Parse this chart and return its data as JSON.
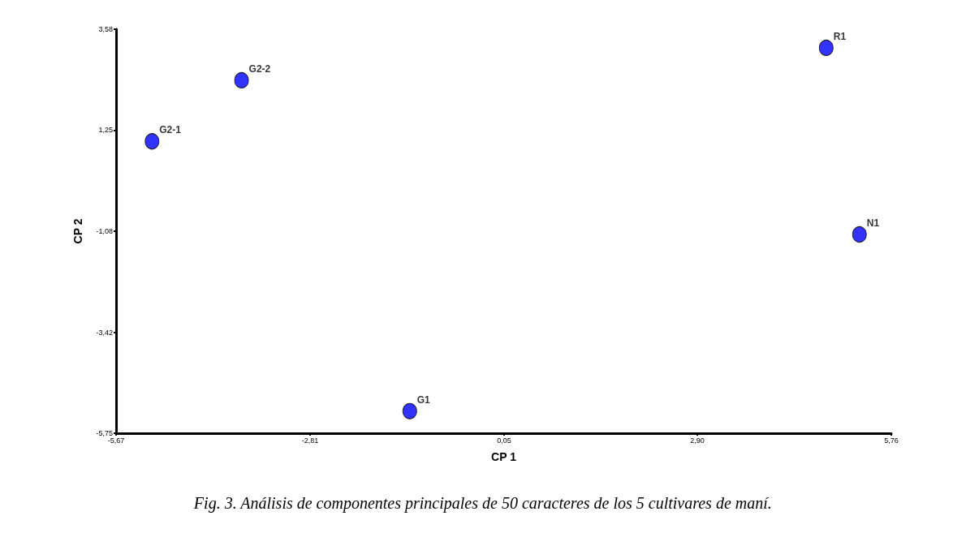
{
  "chart_data": {
    "type": "scatter",
    "xlabel": "CP 1",
    "ylabel": "CP 2",
    "x": [
      -5.14,
      -3.82,
      -1.34,
      4.8,
      5.29
    ],
    "values": [
      0.99,
      2.4,
      -5.24,
      3.15,
      -1.16
    ],
    "color": "#0000ff",
    "marker": "circle",
    "grid": false,
    "xlim": [
      -5.67,
      5.76
    ],
    "ylim": [
      -5.75,
      3.58
    ],
    "xticks": [
      {
        "value": -5.67,
        "label": "-5,67"
      },
      {
        "value": -2.81,
        "label": "-2,81"
      },
      {
        "value": 0.05,
        "label": "0,05"
      },
      {
        "value": 2.9,
        "label": "2,90"
      },
      {
        "value": 5.76,
        "label": "5,76"
      }
    ],
    "yticks": [
      {
        "value": -5.75,
        "label": "-5,75"
      },
      {
        "value": -3.42,
        "label": "-3,42"
      },
      {
        "value": -1.08,
        "label": "-1,08"
      },
      {
        "value": 1.25,
        "label": "1,25"
      },
      {
        "value": 3.58,
        "label": "3,58"
      }
    ],
    "annotations": [
      {
        "text": "G2-1",
        "x": -5.14,
        "y": 0.99
      },
      {
        "text": "G2-2",
        "x": -3.82,
        "y": 2.4
      },
      {
        "text": "G1",
        "x": -1.34,
        "y": -5.24
      },
      {
        "text": "R1",
        "x": 4.8,
        "y": 3.15
      },
      {
        "text": "N1",
        "x": 5.29,
        "y": -1.16
      },
      "Fig. 3. Análisis de componentes principales de 50 caracteres de los 5 cultivares de maní."
    ]
  }
}
